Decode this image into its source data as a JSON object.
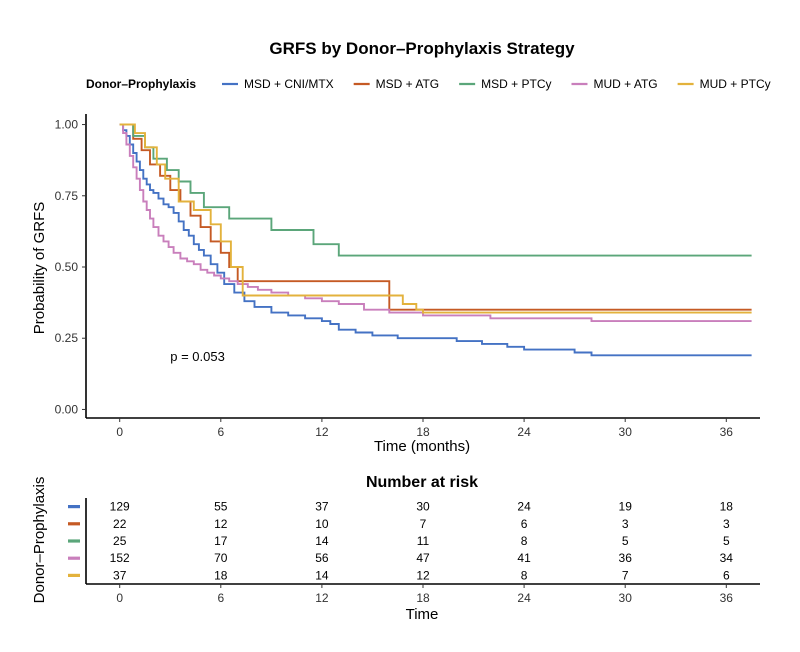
{
  "chart_data": [
    {
      "type": "line",
      "title": "GRFS by Donor–Prophylaxis Strategy",
      "legend": {
        "title": "Donor–Prophylaxis",
        "placement": "top",
        "entries": [
          "MSD + CNI/MTX",
          "MSD + ATG",
          "MSD + PTCy",
          "MUD + ATG",
          "MUD + PTCy"
        ]
      },
      "xlabel": "Time (months)",
      "ylabel": "Probability of GRFS",
      "xlim": [
        -2,
        38
      ],
      "ylim": [
        -0.03,
        1.03
      ],
      "xticks": [
        0,
        6,
        12,
        18,
        24,
        30,
        36
      ],
      "yticks": [
        0.0,
        0.25,
        0.5,
        0.75,
        1.0
      ],
      "ytick_labels": [
        "0.00",
        "0.25",
        "0.50",
        "0.75",
        "1.00"
      ],
      "annotation": "p = 0.053",
      "annotation_position": [
        3,
        0.17
      ],
      "grid": false,
      "step": true,
      "series": [
        {
          "name": "MSD + CNI/MTX",
          "color": "#4472C4",
          "x": [
            0,
            0.2,
            0.4,
            0.6,
            0.8,
            1.0,
            1.2,
            1.4,
            1.6,
            1.8,
            2.0,
            2.3,
            2.6,
            2.9,
            3.2,
            3.5,
            3.8,
            4.1,
            4.4,
            4.7,
            5.0,
            5.4,
            5.8,
            6.2,
            6.8,
            7.4,
            8.0,
            9.0,
            10.0,
            11.0,
            12.0,
            12.5,
            13.0,
            14.0,
            15.0,
            16.5,
            18.0,
            20.0,
            21.5,
            22.0,
            23.0,
            24.0,
            25.0,
            26.5,
            27.0,
            28.0,
            30.0,
            32.0,
            34.0,
            36.0,
            37.5
          ],
          "y": [
            1.0,
            0.98,
            0.96,
            0.93,
            0.9,
            0.87,
            0.84,
            0.81,
            0.79,
            0.77,
            0.76,
            0.74,
            0.72,
            0.71,
            0.69,
            0.66,
            0.63,
            0.61,
            0.58,
            0.56,
            0.54,
            0.51,
            0.48,
            0.44,
            0.41,
            0.38,
            0.36,
            0.34,
            0.33,
            0.32,
            0.31,
            0.3,
            0.28,
            0.27,
            0.26,
            0.25,
            0.25,
            0.24,
            0.23,
            0.23,
            0.22,
            0.21,
            0.21,
            0.21,
            0.2,
            0.19,
            0.19,
            0.19,
            0.19,
            0.19,
            0.19
          ]
        },
        {
          "name": "MSD + ATG",
          "color": "#C55A24",
          "x": [
            0,
            0.8,
            1.3,
            1.8,
            2.4,
            3.0,
            3.6,
            4.2,
            4.8,
            5.4,
            6.0,
            6.5,
            7.0,
            15.5,
            16.0,
            37.5
          ],
          "y": [
            1.0,
            0.95,
            0.91,
            0.86,
            0.82,
            0.77,
            0.73,
            0.68,
            0.64,
            0.59,
            0.55,
            0.5,
            0.45,
            0.45,
            0.35,
            0.35
          ]
        },
        {
          "name": "MSD + PTCy",
          "color": "#5BA67A",
          "x": [
            0,
            0.8,
            1.5,
            2.0,
            2.8,
            3.5,
            4.2,
            5.0,
            6.5,
            9.0,
            11.5,
            13.0,
            37.5
          ],
          "y": [
            1.0,
            0.96,
            0.92,
            0.88,
            0.84,
            0.8,
            0.76,
            0.71,
            0.67,
            0.63,
            0.58,
            0.54,
            0.54
          ]
        },
        {
          "name": "MUD + ATG",
          "color": "#C97FBC",
          "x": [
            0,
            0.2,
            0.4,
            0.6,
            0.8,
            1.0,
            1.2,
            1.4,
            1.6,
            1.8,
            2.0,
            2.3,
            2.6,
            2.9,
            3.2,
            3.6,
            4.0,
            4.4,
            4.8,
            5.2,
            5.6,
            6.0,
            6.5,
            7.0,
            7.6,
            8.2,
            9.0,
            10.0,
            11.0,
            12.0,
            13.0,
            14.5,
            16.0,
            17.0,
            18.0,
            20.0,
            22.0,
            24.0,
            26.0,
            28.0,
            30.0,
            32.0,
            36.0,
            37.5
          ],
          "y": [
            1.0,
            0.97,
            0.93,
            0.89,
            0.85,
            0.81,
            0.77,
            0.73,
            0.7,
            0.67,
            0.64,
            0.61,
            0.59,
            0.57,
            0.55,
            0.53,
            0.52,
            0.51,
            0.49,
            0.48,
            0.47,
            0.46,
            0.45,
            0.44,
            0.43,
            0.42,
            0.41,
            0.4,
            0.39,
            0.38,
            0.37,
            0.35,
            0.34,
            0.34,
            0.33,
            0.33,
            0.32,
            0.32,
            0.32,
            0.31,
            0.31,
            0.31,
            0.31,
            0.31
          ]
        },
        {
          "name": "MUD + PTCy",
          "color": "#E3B23C",
          "x": [
            0,
            0.9,
            1.5,
            2.2,
            2.7,
            3.5,
            4.4,
            5.4,
            6.0,
            6.6,
            7.3,
            16.0,
            16.8,
            17.6,
            18.0,
            37.5
          ],
          "y": [
            1.0,
            0.97,
            0.92,
            0.86,
            0.81,
            0.73,
            0.7,
            0.65,
            0.59,
            0.5,
            0.4,
            0.4,
            0.37,
            0.35,
            0.34,
            0.34
          ]
        }
      ]
    },
    {
      "type": "table",
      "title": "Number at risk",
      "ylabel": "Donor–Prophylaxis",
      "xlabel": "Time",
      "xticks": [
        0,
        6,
        12,
        18,
        24,
        30,
        36
      ],
      "rows": [
        {
          "series": "MSD + CNI/MTX",
          "color": "#4472C4",
          "values": [
            129,
            55,
            37,
            30,
            24,
            19,
            18
          ]
        },
        {
          "series": "MSD + ATG",
          "color": "#C55A24",
          "values": [
            22,
            12,
            10,
            7,
            6,
            3,
            3
          ]
        },
        {
          "series": "MSD + PTCy",
          "color": "#5BA67A",
          "values": [
            25,
            17,
            14,
            11,
            8,
            5,
            5
          ]
        },
        {
          "series": "MUD + ATG",
          "color": "#C97FBC",
          "values": [
            152,
            70,
            56,
            47,
            41,
            36,
            34
          ]
        },
        {
          "series": "MUD + PTCy",
          "color": "#E3B23C",
          "values": [
            37,
            18,
            14,
            12,
            8,
            7,
            6
          ]
        }
      ]
    }
  ]
}
